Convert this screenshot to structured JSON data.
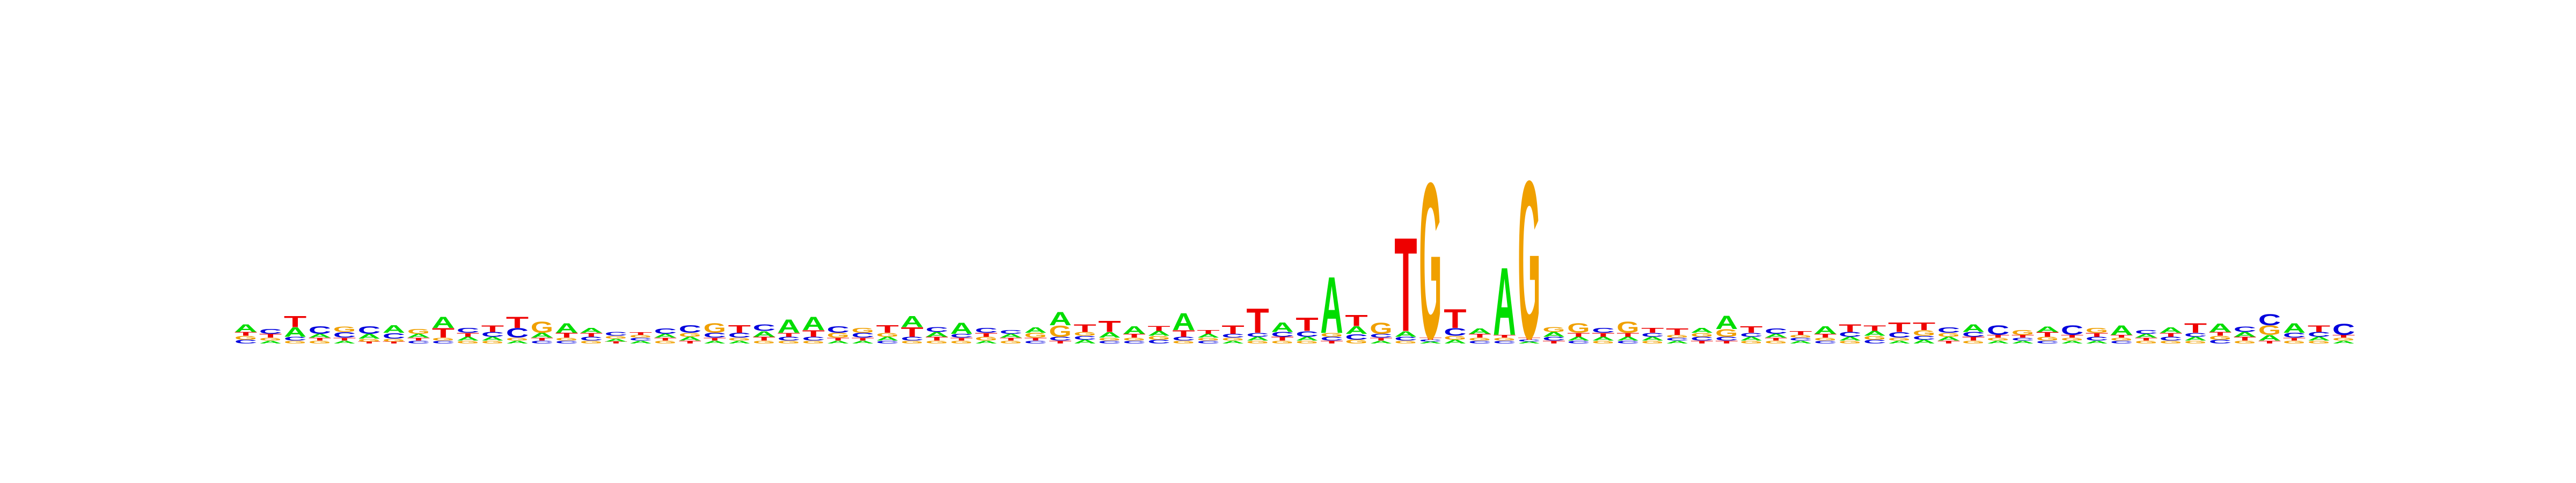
{
  "chart_data": {
    "type": "sequence-logo",
    "alphabet": [
      "A",
      "C",
      "G",
      "T"
    ],
    "colors": {
      "A": "#00dd00",
      "C": "#0000dd",
      "G": "#f0a000",
      "T": "#ee0000"
    },
    "ylim": [
      0,
      2
    ],
    "title": "",
    "xlabel": "",
    "ylabel": "",
    "positions": [
      {
        "A": 0.08,
        "C": 0.04,
        "G": 0.04,
        "T": 0.04
      },
      {
        "A": 0.03,
        "C": 0.05,
        "G": 0.03,
        "T": 0.04
      },
      {
        "A": 0.1,
        "C": 0.04,
        "G": 0.03,
        "T": 0.12
      },
      {
        "A": 0.04,
        "C": 0.08,
        "G": 0.03,
        "T": 0.03
      },
      {
        "A": 0.03,
        "C": 0.06,
        "G": 0.06,
        "T": 0.03
      },
      {
        "A": 0.05,
        "C": 0.08,
        "G": 0.03,
        "T": 0.02
      },
      {
        "A": 0.08,
        "C": 0.06,
        "G": 0.03,
        "T": 0.02
      },
      {
        "A": 0.04,
        "C": 0.03,
        "G": 0.05,
        "T": 0.03
      },
      {
        "A": 0.12,
        "C": 0.03,
        "G": 0.03,
        "T": 0.1
      },
      {
        "A": 0.04,
        "C": 0.05,
        "G": 0.03,
        "T": 0.04
      },
      {
        "A": 0.04,
        "C": 0.05,
        "G": 0.03,
        "T": 0.07
      },
      {
        "A": 0.03,
        "C": 0.1,
        "G": 0.03,
        "T": 0.12
      },
      {
        "A": 0.05,
        "C": 0.03,
        "G": 0.12,
        "T": 0.03
      },
      {
        "A": 0.1,
        "C": 0.03,
        "G": 0.03,
        "T": 0.05
      },
      {
        "A": 0.05,
        "C": 0.04,
        "G": 0.03,
        "T": 0.04
      },
      {
        "A": 0.03,
        "C": 0.04,
        "G": 0.03,
        "T": 0.02
      },
      {
        "A": 0.03,
        "C": 0.03,
        "G": 0.03,
        "T": 0.03
      },
      {
        "A": 0.04,
        "C": 0.06,
        "G": 0.03,
        "T": 0.03
      },
      {
        "A": 0.04,
        "C": 0.08,
        "G": 0.04,
        "T": 0.03
      },
      {
        "A": 0.03,
        "C": 0.05,
        "G": 0.1,
        "T": 0.03
      },
      {
        "A": 0.03,
        "C": 0.05,
        "G": 0.03,
        "T": 0.08
      },
      {
        "A": 0.06,
        "C": 0.07,
        "G": 0.03,
        "T": 0.04
      },
      {
        "A": 0.14,
        "C": 0.04,
        "G": 0.03,
        "T": 0.04
      },
      {
        "A": 0.14,
        "C": 0.04,
        "G": 0.03,
        "T": 0.07
      },
      {
        "A": 0.03,
        "C": 0.07,
        "G": 0.05,
        "T": 0.03
      },
      {
        "A": 0.03,
        "C": 0.05,
        "G": 0.05,
        "T": 0.03
      },
      {
        "A": 0.04,
        "C": 0.03,
        "G": 0.04,
        "T": 0.08
      },
      {
        "A": 0.12,
        "C": 0.04,
        "G": 0.03,
        "T": 0.1
      },
      {
        "A": 0.05,
        "C": 0.05,
        "G": 0.03,
        "T": 0.04
      },
      {
        "A": 0.12,
        "C": 0.04,
        "G": 0.03,
        "T": 0.03
      },
      {
        "A": 0.03,
        "C": 0.05,
        "G": 0.04,
        "T": 0.04
      },
      {
        "A": 0.04,
        "C": 0.04,
        "G": 0.03,
        "T": 0.03
      },
      {
        "A": 0.06,
        "C": 0.03,
        "G": 0.05,
        "T": 0.03
      },
      {
        "A": 0.14,
        "C": 0.04,
        "G": 0.12,
        "T": 0.03
      },
      {
        "A": 0.04,
        "C": 0.04,
        "G": 0.04,
        "T": 0.08
      },
      {
        "A": 0.06,
        "C": 0.03,
        "G": 0.03,
        "T": 0.12
      },
      {
        "A": 0.08,
        "C": 0.03,
        "G": 0.03,
        "T": 0.04
      },
      {
        "A": 0.05,
        "C": 0.04,
        "G": 0.04,
        "T": 0.05
      },
      {
        "A": 0.18,
        "C": 0.04,
        "G": 0.03,
        "T": 0.07
      },
      {
        "A": 0.04,
        "C": 0.03,
        "G": 0.03,
        "T": 0.04
      },
      {
        "A": 0.03,
        "C": 0.04,
        "G": 0.03,
        "T": 0.09
      },
      {
        "A": 0.04,
        "C": 0.04,
        "G": 0.03,
        "T": 0.26
      },
      {
        "A": 0.1,
        "C": 0.05,
        "G": 0.03,
        "T": 0.04
      },
      {
        "A": 0.04,
        "C": 0.06,
        "G": 0.03,
        "T": 0.14
      },
      {
        "A": 0.6,
        "C": 0.04,
        "G": 0.04,
        "T": 0.03
      },
      {
        "A": 0.08,
        "C": 0.06,
        "G": 0.04,
        "T": 0.12
      },
      {
        "A": 0.03,
        "C": 0.04,
        "G": 0.12,
        "T": 0.03
      },
      {
        "A": 0.06,
        "C": 0.04,
        "G": 0.03,
        "T": 1.0
      },
      {
        "A": 0.02,
        "C": 0.02,
        "G": 1.66,
        "T": 0.02
      },
      {
        "A": 0.04,
        "C": 0.08,
        "G": 0.04,
        "T": 0.2
      },
      {
        "A": 0.06,
        "C": 0.03,
        "G": 0.03,
        "T": 0.04
      },
      {
        "A": 0.72,
        "C": 0.03,
        "G": 0.03,
        "T": 0.03
      },
      {
        "A": 0.02,
        "C": 0.02,
        "G": 1.68,
        "T": 0.02
      },
      {
        "A": 0.05,
        "C": 0.04,
        "G": 0.05,
        "T": 0.03
      },
      {
        "A": 0.04,
        "C": 0.03,
        "G": 0.1,
        "T": 0.04
      },
      {
        "A": 0.04,
        "C": 0.05,
        "G": 0.03,
        "T": 0.04
      },
      {
        "A": 0.04,
        "C": 0.03,
        "G": 0.12,
        "T": 0.04
      },
      {
        "A": 0.04,
        "C": 0.04,
        "G": 0.03,
        "T": 0.05
      },
      {
        "A": 0.03,
        "C": 0.03,
        "G": 0.03,
        "T": 0.07
      },
      {
        "A": 0.05,
        "C": 0.04,
        "G": 0.04,
        "T": 0.03
      },
      {
        "A": 0.14,
        "C": 0.04,
        "G": 0.08,
        "T": 0.03
      },
      {
        "A": 0.04,
        "C": 0.04,
        "G": 0.03,
        "T": 0.07
      },
      {
        "A": 0.04,
        "C": 0.06,
        "G": 0.03,
        "T": 0.03
      },
      {
        "A": 0.03,
        "C": 0.03,
        "G": 0.03,
        "T": 0.04
      },
      {
        "A": 0.08,
        "C": 0.03,
        "G": 0.03,
        "T": 0.04
      },
      {
        "A": 0.04,
        "C": 0.05,
        "G": 0.03,
        "T": 0.08
      },
      {
        "A": 0.05,
        "C": 0.04,
        "G": 0.04,
        "T": 0.06
      },
      {
        "A": 0.03,
        "C": 0.06,
        "G": 0.03,
        "T": 0.1
      },
      {
        "A": 0.04,
        "C": 0.04,
        "G": 0.06,
        "T": 0.08
      },
      {
        "A": 0.04,
        "C": 0.06,
        "G": 0.04,
        "T": 0.03
      },
      {
        "A": 0.08,
        "C": 0.05,
        "G": 0.03,
        "T": 0.04
      },
      {
        "A": 0.03,
        "C": 0.1,
        "G": 0.03,
        "T": 0.03
      },
      {
        "A": 0.03,
        "C": 0.03,
        "G": 0.05,
        "T": 0.03
      },
      {
        "A": 0.06,
        "C": 0.03,
        "G": 0.04,
        "T": 0.05
      },
      {
        "A": 0.03,
        "C": 0.1,
        "G": 0.03,
        "T": 0.03
      },
      {
        "A": 0.03,
        "C": 0.04,
        "G": 0.05,
        "T": 0.04
      },
      {
        "A": 0.1,
        "C": 0.03,
        "G": 0.03,
        "T": 0.03
      },
      {
        "A": 0.04,
        "C": 0.04,
        "G": 0.03,
        "T": 0.03
      },
      {
        "A": 0.06,
        "C": 0.04,
        "G": 0.03,
        "T": 0.04
      },
      {
        "A": 0.04,
        "C": 0.04,
        "G": 0.03,
        "T": 0.1
      },
      {
        "A": 0.09,
        "C": 0.04,
        "G": 0.04,
        "T": 0.04
      },
      {
        "A": 0.05,
        "C": 0.06,
        "G": 0.03,
        "T": 0.04
      },
      {
        "A": 0.06,
        "C": 0.12,
        "G": 0.1,
        "T": 0.03
      },
      {
        "A": 0.1,
        "C": 0.05,
        "G": 0.03,
        "T": 0.03
      },
      {
        "A": 0.04,
        "C": 0.05,
        "G": 0.03,
        "T": 0.07
      },
      {
        "A": 0.03,
        "C": 0.12,
        "G": 0.03,
        "T": 0.03
      }
    ]
  }
}
